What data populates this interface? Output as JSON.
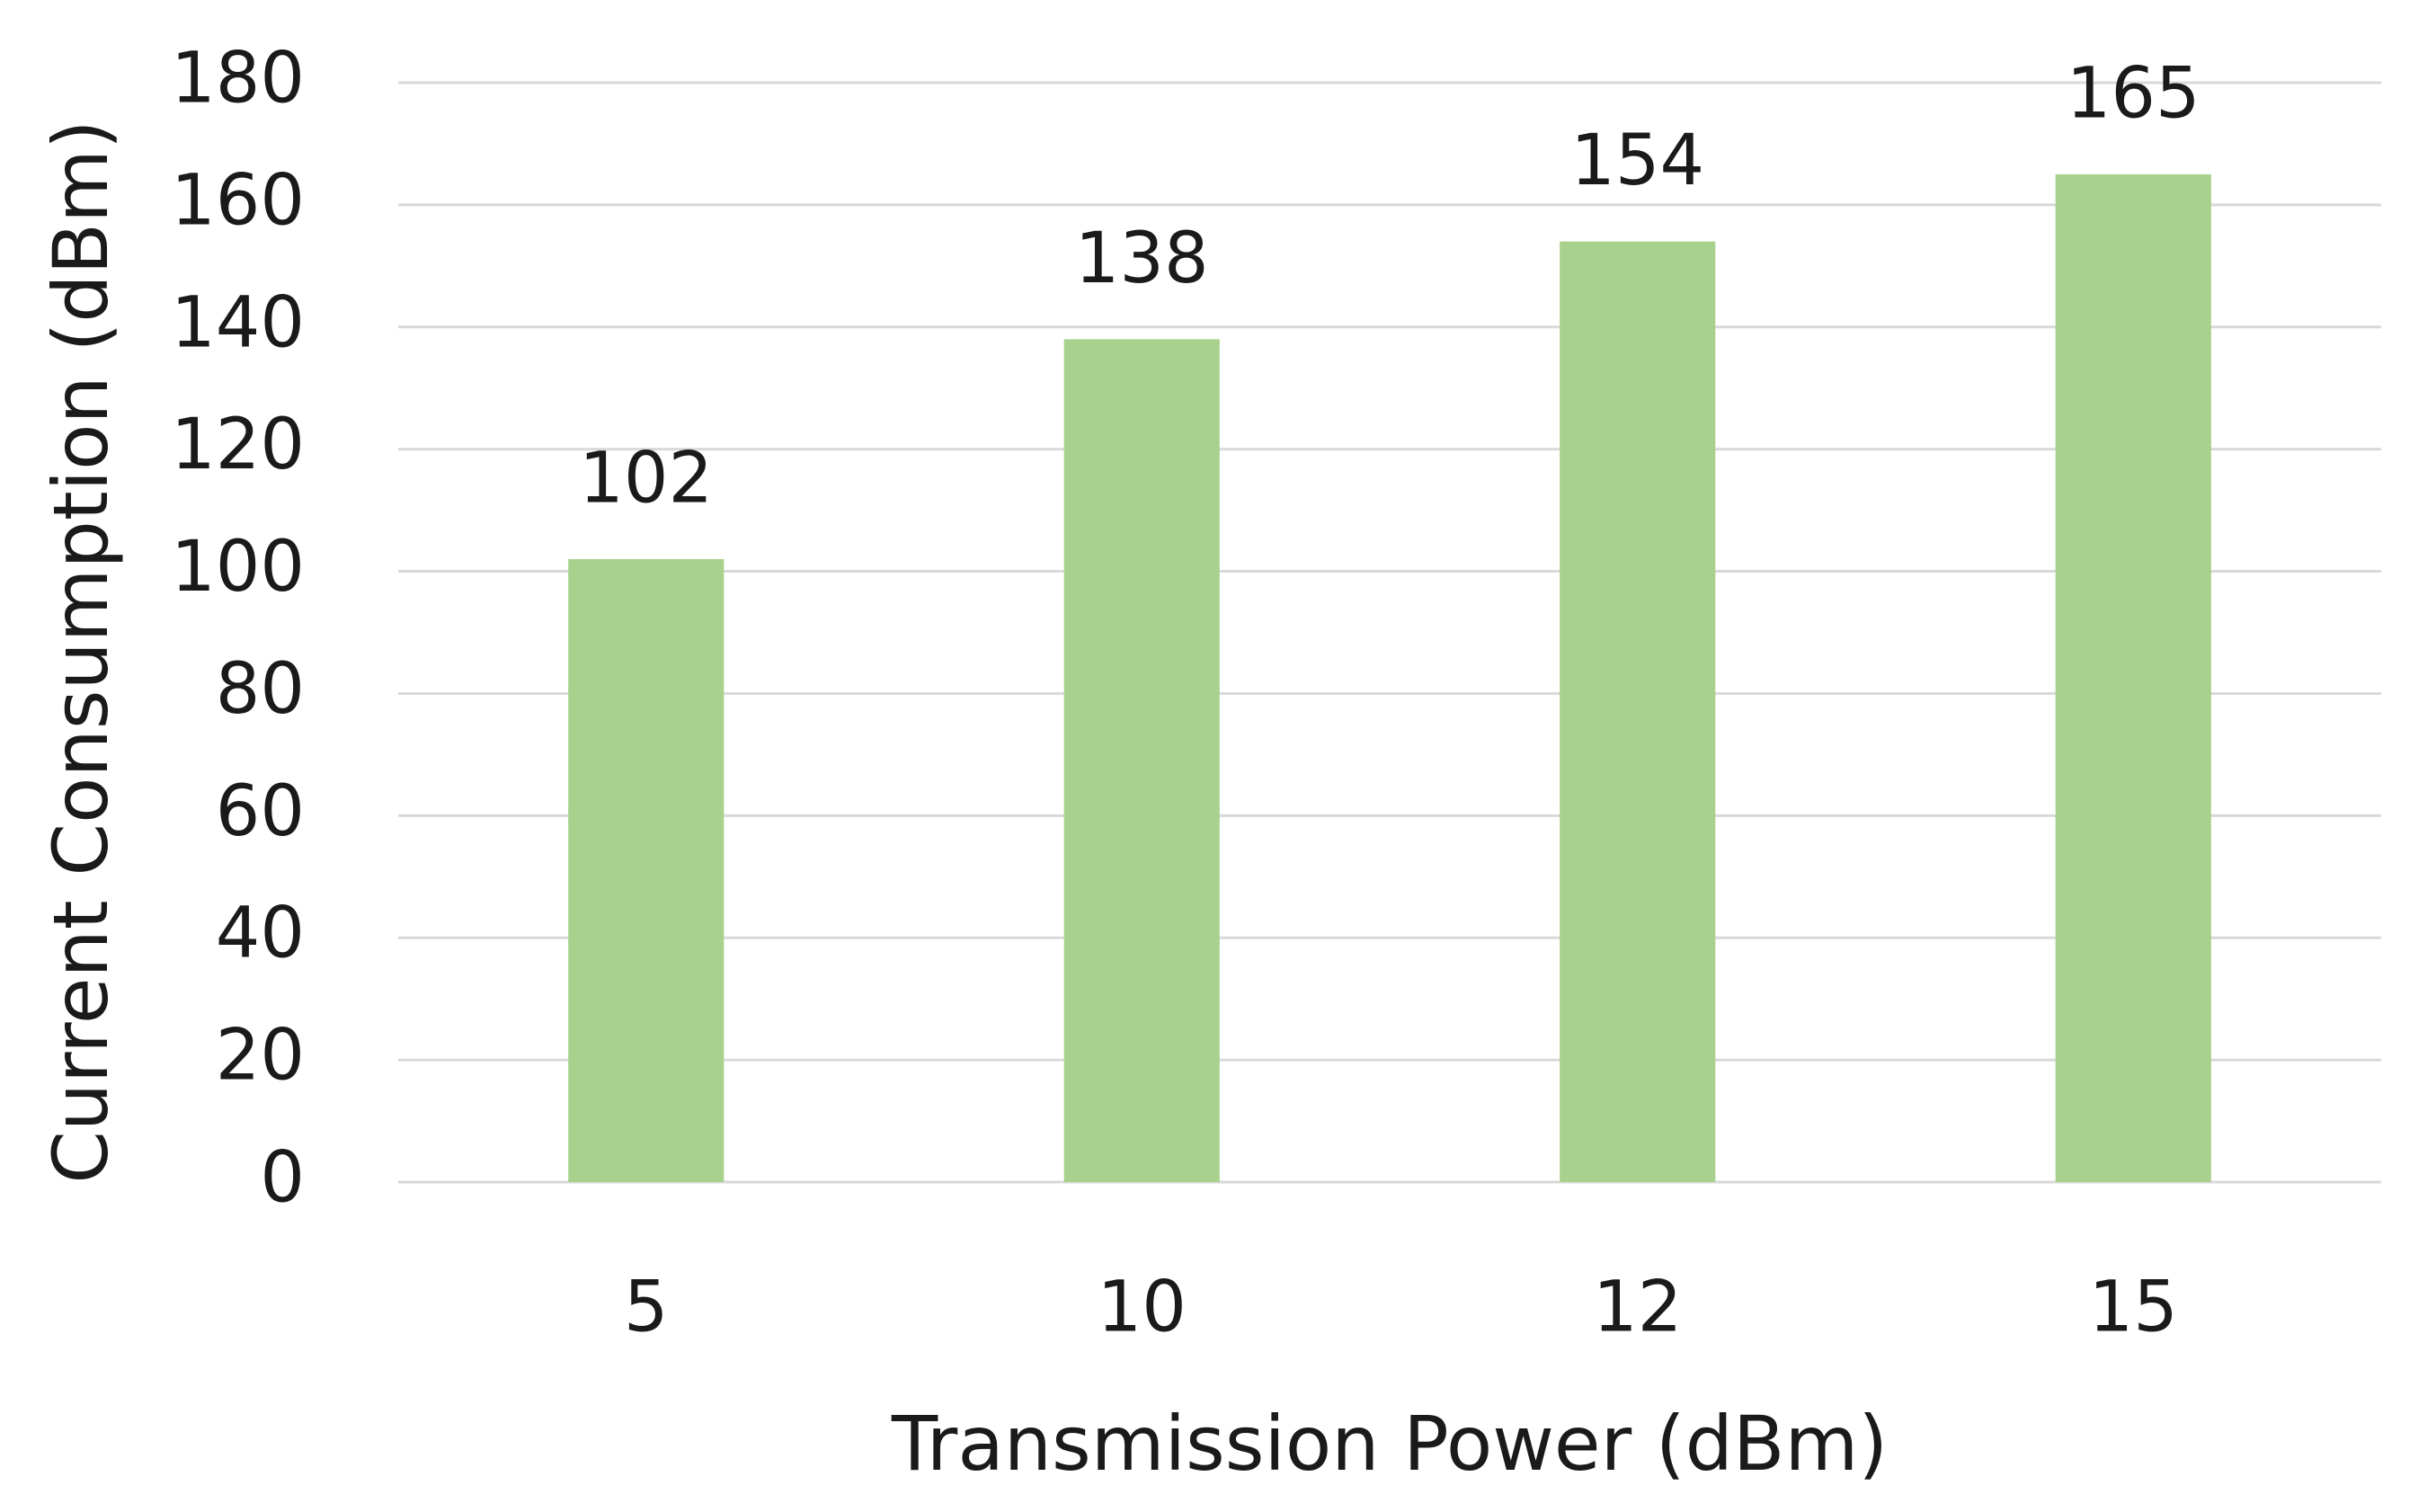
{
  "chart_data": {
    "type": "bar",
    "x_label": "Transmission Power (dBm)",
    "y_label": "Current Consumption (dBm)",
    "categories": [
      "5",
      "10",
      "12",
      "15"
    ],
    "values": [
      102,
      138,
      154,
      165
    ],
    "color": "#a9d18e",
    "ylim": [
      0,
      180
    ],
    "yticks": [
      0,
      20,
      40,
      60,
      80,
      100,
      120,
      140,
      160,
      180
    ],
    "grid": true,
    "data_labels": true
  }
}
